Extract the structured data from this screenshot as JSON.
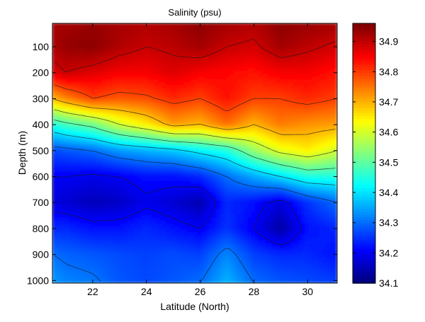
{
  "chart_data": {
    "type": "heatmap",
    "title": "Salinity (psu)",
    "xlabel": "Latitude (North)",
    "ylabel": "Depth (m)",
    "xlim": [
      20.5,
      31.1
    ],
    "ylim": [
      1010,
      10
    ],
    "x_ticks": [
      22,
      24,
      26,
      28,
      30
    ],
    "y_ticks": [
      100,
      200,
      300,
      400,
      500,
      600,
      700,
      800,
      900,
      1000
    ],
    "colorbar": {
      "colormap": "jet",
      "range": [
        34.1,
        34.96
      ],
      "ticks": [
        34.1,
        34.2,
        34.3,
        34.4,
        34.5,
        34.6,
        34.7,
        34.8,
        34.9
      ]
    },
    "grid": false,
    "contour_lines": true,
    "field": {
      "latitudes": [
        20.5,
        21,
        22,
        23,
        24,
        25,
        26,
        27,
        28,
        29,
        30,
        31.1
      ],
      "depth_levels": [
        {
          "depth": 10,
          "salinity": [
            34.93,
            34.93,
            34.94,
            34.93,
            34.92,
            34.93,
            34.95,
            34.93,
            34.92,
            34.95,
            34.94,
            34.93
          ]
        },
        {
          "depth": 100,
          "salinity": [
            34.92,
            34.94,
            34.95,
            34.92,
            34.9,
            34.91,
            34.93,
            34.9,
            34.89,
            34.93,
            34.91,
            34.89
          ]
        },
        {
          "depth": 200,
          "salinity": [
            34.88,
            34.9,
            34.88,
            34.86,
            34.86,
            34.88,
            34.86,
            34.85,
            34.84,
            34.86,
            34.86,
            34.84
          ]
        },
        {
          "depth": 300,
          "salinity": [
            34.7,
            34.74,
            34.8,
            34.78,
            34.79,
            34.82,
            34.8,
            34.84,
            34.8,
            34.8,
            34.82,
            34.8
          ]
        },
        {
          "depth": 400,
          "salinity": [
            34.45,
            34.48,
            34.52,
            34.6,
            34.65,
            34.72,
            34.7,
            34.76,
            34.7,
            34.75,
            34.73,
            34.72
          ]
        },
        {
          "depth": 500,
          "salinity": [
            34.27,
            34.28,
            34.3,
            34.34,
            34.36,
            34.38,
            34.42,
            34.45,
            34.55,
            34.62,
            34.65,
            34.6
          ]
        },
        {
          "depth": 600,
          "salinity": [
            34.2,
            34.2,
            34.19,
            34.2,
            34.22,
            34.22,
            34.24,
            34.3,
            34.35,
            34.4,
            34.45,
            34.45
          ]
        },
        {
          "depth": 700,
          "salinity": [
            34.18,
            34.17,
            34.15,
            34.16,
            34.19,
            34.17,
            34.14,
            34.24,
            34.22,
            34.18,
            34.25,
            34.3
          ]
        },
        {
          "depth": 800,
          "salinity": [
            34.24,
            34.24,
            34.22,
            34.22,
            34.24,
            34.22,
            34.2,
            34.25,
            34.2,
            34.13,
            34.22,
            34.24
          ]
        },
        {
          "depth": 900,
          "salinity": [
            34.3,
            34.29,
            34.28,
            34.27,
            34.26,
            34.27,
            34.26,
            34.32,
            34.26,
            34.24,
            34.24,
            34.22
          ]
        },
        {
          "depth": 1010,
          "salinity": [
            34.34,
            34.32,
            34.31,
            34.28,
            34.27,
            34.28,
            34.3,
            34.36,
            34.3,
            34.28,
            34.27,
            34.26
          ]
        }
      ]
    }
  }
}
